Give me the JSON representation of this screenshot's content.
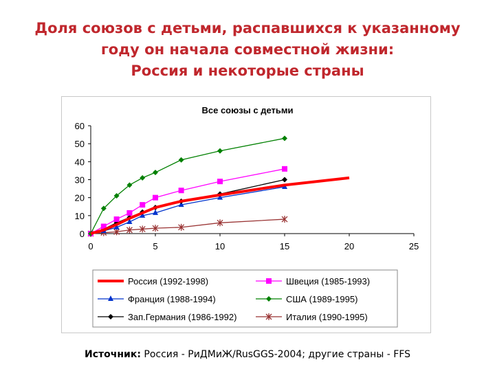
{
  "slide": {
    "title_lines": [
      "Доля союзов с детьми, распавшихся к указанному",
      "году он начала совместной жизни:",
      "Россия и некоторые страны"
    ],
    "source_label": "Источник:",
    "source_text": " Россия - РиДМиЖ/RusGGS-2004; другие страны - FFS"
  },
  "chart_data": {
    "type": "line",
    "title": "Все союзы с детьми",
    "xlabel": "",
    "ylabel": "",
    "xlim": [
      0,
      25
    ],
    "ylim": [
      0,
      60
    ],
    "x_ticks": [
      0,
      5,
      10,
      15,
      20,
      25
    ],
    "y_ticks": [
      0,
      10,
      20,
      30,
      40,
      50,
      60
    ],
    "grid": false,
    "legend_position": "bottom",
    "series": [
      {
        "name": "Россия (1992-1998)",
        "color": "#ff0000",
        "marker": "none",
        "width": 4,
        "x": [
          0,
          1,
          2,
          3,
          4,
          5,
          7,
          10,
          15,
          20
        ],
        "y": [
          0,
          2,
          5,
          8.5,
          11.5,
          14.5,
          18,
          21.5,
          27,
          31
        ]
      },
      {
        "name": "Швеция (1985-1993)",
        "color": "#ff00ff",
        "marker": "square",
        "width": 1.3,
        "x": [
          0,
          1,
          2,
          3,
          4,
          5,
          7,
          10,
          15
        ],
        "y": [
          0,
          4,
          8,
          11.5,
          16,
          20,
          24,
          29,
          36
        ]
      },
      {
        "name": "Франция (1988-1994)",
        "color": "#0033cc",
        "marker": "triangle",
        "width": 1.3,
        "x": [
          0,
          1,
          2,
          3,
          4,
          5,
          7,
          10,
          15
        ],
        "y": [
          0,
          1.5,
          3.5,
          6.5,
          10,
          11.5,
          16,
          20,
          26
        ]
      },
      {
        "name": "США (1989-1995)",
        "color": "#008000",
        "marker": "diamond",
        "width": 1.3,
        "x": [
          0,
          1,
          2,
          3,
          4,
          5,
          7,
          10,
          15
        ],
        "y": [
          0,
          14,
          21,
          27,
          31,
          34,
          41,
          46,
          53
        ]
      },
      {
        "name": "Зап.Германия (1986-1992)",
        "color": "#000000",
        "marker": "diamond",
        "width": 1.3,
        "x": [
          0,
          1,
          2,
          3,
          4,
          5,
          7,
          10,
          15
        ],
        "y": [
          0,
          2.5,
          6,
          9,
          12,
          14.5,
          18,
          22,
          30
        ]
      },
      {
        "name": "Италия (1990-1995)",
        "color": "#993333",
        "marker": "star",
        "width": 1.3,
        "x": [
          0,
          1,
          2,
          3,
          4,
          5,
          7,
          10,
          15
        ],
        "y": [
          0,
          0.5,
          1,
          2,
          2.5,
          3,
          3.5,
          6,
          8
        ]
      }
    ],
    "legend_order": [
      0,
      1,
      2,
      3,
      4,
      5
    ]
  }
}
